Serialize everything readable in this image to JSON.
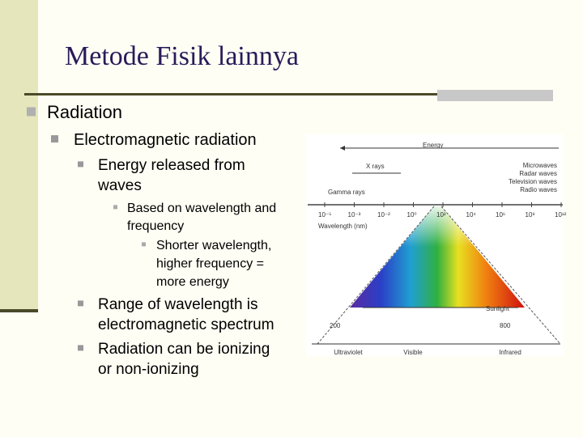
{
  "title": "Metode Fisik lainnya",
  "bullets": [
    {
      "level": 1,
      "lines": [
        "Radiation"
      ]
    },
    {
      "level": 2,
      "lines": [
        "Electromagnetic radiation"
      ]
    },
    {
      "level": 3,
      "lines": [
        "Energy released from",
        "waves"
      ]
    },
    {
      "level": 4,
      "lines": [
        "Based on wavelength and",
        "frequency"
      ]
    },
    {
      "level": 5,
      "lines": [
        "Shorter wavelength,",
        "higher frequency =",
        "more energy"
      ]
    },
    {
      "level": 3,
      "lines": [
        "Range of wavelength is",
        "electromagnetic spectrum"
      ]
    },
    {
      "level": 3,
      "lines": [
        "Radiation can be ionizing",
        "or non-ionizing"
      ]
    }
  ],
  "figure": {
    "energy": "Energy",
    "xrays": "X rays",
    "gamma": "Gamma rays",
    "long_waves": [
      "Microwaves",
      "Radar waves",
      "Television waves",
      "Radio waves"
    ],
    "wavelength_label": "Wavelength (nm)",
    "wavelengths": [
      "10⁻⁵",
      "10⁻³",
      "10⁻²",
      "10⁰",
      "10²",
      "10⁴",
      "10⁶",
      "10⁸",
      "10¹²"
    ],
    "sunlight": "Sunlight",
    "band_left": "200",
    "band_right": "800",
    "regions": [
      "Ultraviolet",
      "Visible",
      "Infrared"
    ]
  }
}
